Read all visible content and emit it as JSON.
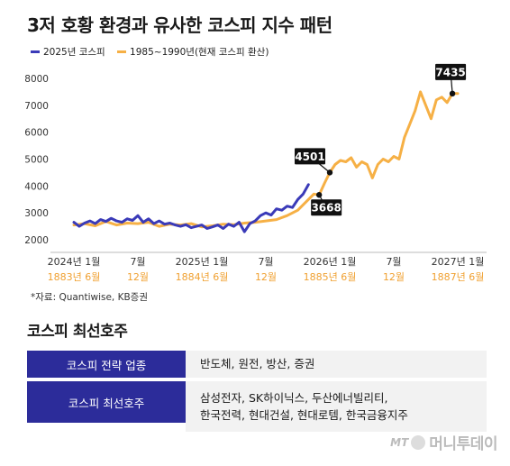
{
  "header": {
    "title": "3저 호황 환경과 유사한 코스피 지수 패턴"
  },
  "colors": {
    "blue": "#3a3ab8",
    "orange": "#f6b045",
    "table_label_bg": "#2c2c9a"
  },
  "chart_data": {
    "type": "line",
    "title": "3저 호황 환경과 유사한 코스피 지수 패턴",
    "ylim": [
      1800,
      8300
    ],
    "y_ticks": [
      2000,
      3000,
      4000,
      5000,
      6000,
      7000,
      8000
    ],
    "x_axis_top_labels": [
      "2024년 1월",
      "7월",
      "2025년 1월",
      "7월",
      "2026년 1월",
      "7월",
      "2027년 1월"
    ],
    "x_axis_bottom_labels": [
      "1883년 6월",
      "12월",
      "1884년 6월",
      "12월",
      "1885년 6월",
      "12월",
      "1887년 6월"
    ],
    "x_axis_label_positions": [
      0,
      6,
      12,
      18,
      24,
      30,
      36
    ],
    "grid": false,
    "legend_position": "top-left",
    "series": [
      {
        "name": "2025년 코스피",
        "color": "#3a3ab8",
        "x": [
          0,
          0.5,
          1,
          1.5,
          2,
          2.5,
          3,
          3.5,
          4,
          4.5,
          5,
          5.5,
          6,
          6.5,
          7,
          7.5,
          8,
          8.5,
          9,
          9.5,
          10,
          10.5,
          11,
          11.5,
          12,
          12.5,
          13,
          13.5,
          14,
          14.5,
          15,
          15.5,
          16,
          16.5,
          17,
          17.5,
          18,
          18.5,
          19,
          19.5,
          20,
          20.5,
          21,
          21.5,
          22
        ],
        "values": [
          2650,
          2500,
          2620,
          2700,
          2600,
          2750,
          2680,
          2800,
          2700,
          2650,
          2780,
          2720,
          2900,
          2650,
          2780,
          2600,
          2700,
          2580,
          2620,
          2550,
          2500,
          2560,
          2450,
          2500,
          2550,
          2420,
          2480,
          2550,
          2420,
          2580,
          2500,
          2650,
          2300,
          2600,
          2700,
          2900,
          3000,
          2920,
          3150,
          3100,
          3250,
          3200,
          3500,
          3700,
          4050
        ]
      },
      {
        "name": "1985~1990년(현재 코스피 환산)",
        "color": "#f6b045",
        "x": [
          0,
          1,
          2,
          3,
          4,
          5,
          6,
          7,
          8,
          9,
          10,
          11,
          12,
          13,
          14,
          15,
          16,
          17,
          18,
          19,
          20,
          21,
          22,
          22.5,
          23,
          23.5,
          24,
          24.5,
          25,
          25.5,
          26,
          26.5,
          27,
          27.5,
          28,
          28.5,
          29,
          29.5,
          30,
          30.5,
          31,
          31.5,
          32,
          32.5,
          33,
          33.5,
          34,
          34.5,
          35,
          35.5,
          36
        ],
        "values": [
          2550,
          2600,
          2520,
          2680,
          2550,
          2620,
          2600,
          2650,
          2500,
          2580,
          2550,
          2600,
          2480,
          2520,
          2580,
          2560,
          2620,
          2650,
          2700,
          2750,
          2900,
          3100,
          3500,
          3700,
          3668,
          4100,
          4501,
          4800,
          4950,
          4900,
          5050,
          4700,
          4900,
          4800,
          4300,
          4800,
          5000,
          4900,
          5100,
          5000,
          5800,
          6300,
          6800,
          7500,
          7000,
          6500,
          7200,
          7300,
          7100,
          7435,
          7435
        ]
      }
    ],
    "annotations": [
      {
        "text": "4501",
        "x": 24,
        "y": 4501
      },
      {
        "text": "3668",
        "x": 23,
        "y": 3668
      },
      {
        "text": "7435",
        "x": 35.5,
        "y": 7435
      }
    ],
    "source": "*자료: Quantiwise, KB증권"
  },
  "section": {
    "title": "코스피 최선호주"
  },
  "table": {
    "rows": [
      {
        "label": "코스피 전략 업종",
        "value": "반도체, 원전, 방산, 증권"
      },
      {
        "label": "코스피 최선호주",
        "value": "삼성전자, SK하이닉스, 두산에너빌리티,\n한국전력, 현대건설, 현대로템, 한국금융지주"
      }
    ]
  },
  "logo": {
    "text": "머니투데이"
  }
}
